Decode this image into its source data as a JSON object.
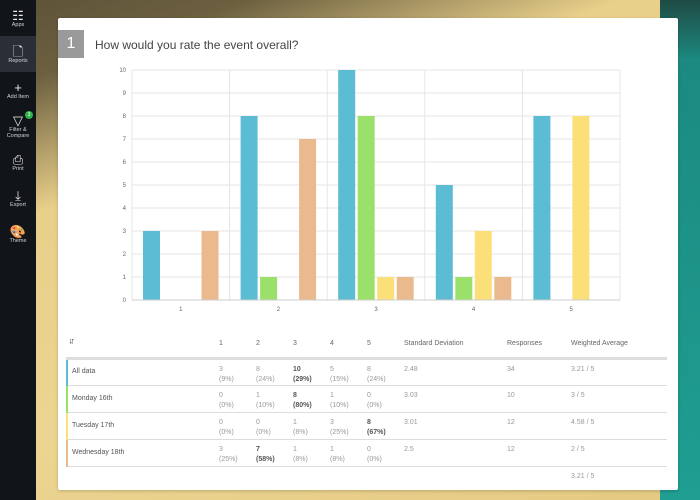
{
  "sidebar": {
    "items": [
      {
        "label": "Apps",
        "icon": "apps-icon"
      },
      {
        "label": "Reports",
        "icon": "report-icon",
        "active": true
      },
      {
        "label": "Add Item",
        "icon": "plus-icon"
      },
      {
        "label": "Filter & Compare",
        "icon": "filter-icon",
        "badge": "3"
      },
      {
        "label": "Print",
        "icon": "print-icon"
      },
      {
        "label": "Export",
        "icon": "export-icon"
      },
      {
        "label": "Theme",
        "icon": "palette-icon"
      }
    ]
  },
  "question": {
    "number": "1",
    "title": "How would you rate the event overall?"
  },
  "chart_data": {
    "type": "bar",
    "categories": [
      "1",
      "2",
      "3",
      "4",
      "5"
    ],
    "ylim": [
      0,
      10
    ],
    "yticks": [
      0,
      1,
      2,
      3,
      4,
      5,
      6,
      7,
      8,
      9,
      10
    ],
    "grid": true,
    "series": [
      {
        "name": "All data",
        "color": "#5bbcd4",
        "values": [
          3,
          8,
          10,
          5,
          8
        ]
      },
      {
        "name": "Monday 16th",
        "color": "#9be06a",
        "values": [
          0,
          1,
          8,
          1,
          0
        ]
      },
      {
        "name": "Tuesday 17th",
        "color": "#fbe07a",
        "values": [
          0,
          0,
          1,
          3,
          8
        ]
      },
      {
        "name": "Wednesday 18th",
        "color": "#ebb98e",
        "values": [
          3,
          7,
          1,
          1,
          0
        ]
      }
    ]
  },
  "table": {
    "headers": [
      "1",
      "2",
      "3",
      "4",
      "5",
      "Standard Deviation",
      "Responses",
      "Weighted Average"
    ],
    "rows": [
      {
        "label": "All data",
        "color": "#5bbcd4",
        "cells": [
          [
            "3",
            "(9%)"
          ],
          [
            "8",
            "(24%)"
          ],
          [
            "10",
            "(29%)"
          ],
          [
            "5",
            "(15%)"
          ],
          [
            "8",
            "(24%)"
          ]
        ],
        "bold": [
          2
        ],
        "sd": "2.48",
        "responses": "34",
        "avg": "3.21 / 5"
      },
      {
        "label": "Monday 16th",
        "color": "#9be06a",
        "cells": [
          [
            "0",
            "(0%)"
          ],
          [
            "1",
            "(10%)"
          ],
          [
            "8",
            "(80%)"
          ],
          [
            "1",
            "(10%)"
          ],
          [
            "0",
            "(0%)"
          ]
        ],
        "bold": [
          2
        ],
        "sd": "3.03",
        "responses": "10",
        "avg": "3 / 5"
      },
      {
        "label": "Tuesday 17th",
        "color": "#fbe07a",
        "cells": [
          [
            "0",
            "(0%)"
          ],
          [
            "0",
            "(0%)"
          ],
          [
            "1",
            "(8%)"
          ],
          [
            "3",
            "(25%)"
          ],
          [
            "8",
            "(67%)"
          ]
        ],
        "bold": [
          4
        ],
        "sd": "3.01",
        "responses": "12",
        "avg": "4.58 / 5"
      },
      {
        "label": "Wednesday 18th",
        "color": "#ebb98e",
        "cells": [
          [
            "3",
            "(25%)"
          ],
          [
            "7",
            "(58%)"
          ],
          [
            "1",
            "(8%)"
          ],
          [
            "1",
            "(8%)"
          ],
          [
            "0",
            "(0%)"
          ]
        ],
        "bold": [
          1
        ],
        "sd": "2.5",
        "responses": "12",
        "avg": "2 / 5"
      }
    ],
    "footer_avg": "3.21 / 5"
  }
}
